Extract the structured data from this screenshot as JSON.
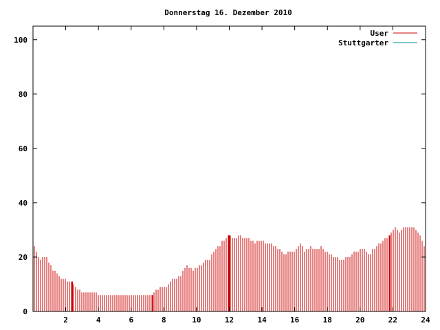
{
  "chart_data": {
    "type": "bar",
    "title": "Donnerstag 16. Dezember 2010",
    "xlabel": "",
    "ylabel": "",
    "xlim": [
      0,
      24
    ],
    "ylim": [
      0,
      105
    ],
    "x_ticks": [
      2,
      4,
      6,
      8,
      10,
      12,
      14,
      16,
      18,
      20,
      22,
      24
    ],
    "y_ticks": [
      0,
      20,
      40,
      60,
      80,
      100
    ],
    "grid": false,
    "legend_position": "top-right",
    "colors": {
      "User": "#cc0000",
      "Stuttgarter": "#008b8b"
    },
    "series": [
      {
        "name": "User",
        "color": "#cc0000",
        "points": [
          [
            0.05,
            25
          ],
          [
            0.2,
            22
          ],
          [
            0.4,
            19
          ],
          [
            0.6,
            20
          ],
          [
            0.8,
            20
          ],
          [
            1.0,
            18
          ],
          [
            1.2,
            15
          ],
          [
            1.4,
            15
          ],
          [
            1.6,
            13
          ],
          [
            1.8,
            12
          ],
          [
            2.0,
            12
          ],
          [
            2.2,
            11
          ],
          [
            2.4,
            11
          ],
          [
            2.6,
            9
          ],
          [
            2.8,
            8
          ],
          [
            3.0,
            7
          ],
          [
            3.2,
            7
          ],
          [
            3.4,
            7
          ],
          [
            3.6,
            7
          ],
          [
            3.8,
            7
          ],
          [
            4.0,
            6
          ],
          [
            4.2,
            6
          ],
          [
            4.4,
            6
          ],
          [
            4.6,
            6
          ],
          [
            4.8,
            6
          ],
          [
            5.0,
            6
          ],
          [
            5.2,
            6
          ],
          [
            5.4,
            6
          ],
          [
            5.6,
            6
          ],
          [
            5.8,
            6
          ],
          [
            6.0,
            6
          ],
          [
            6.2,
            6
          ],
          [
            6.4,
            6
          ],
          [
            6.6,
            6
          ],
          [
            6.8,
            6
          ],
          [
            7.0,
            6
          ],
          [
            7.2,
            6
          ],
          [
            7.4,
            7
          ],
          [
            7.6,
            8
          ],
          [
            7.8,
            9
          ],
          [
            8.0,
            9
          ],
          [
            8.2,
            9
          ],
          [
            8.4,
            11
          ],
          [
            8.6,
            12
          ],
          [
            8.8,
            12
          ],
          [
            9.0,
            13
          ],
          [
            9.2,
            15
          ],
          [
            9.4,
            17
          ],
          [
            9.6,
            16
          ],
          [
            9.8,
            15
          ],
          [
            10.0,
            16
          ],
          [
            10.2,
            17
          ],
          [
            10.4,
            18
          ],
          [
            10.6,
            19
          ],
          [
            10.8,
            19
          ],
          [
            11.0,
            22
          ],
          [
            11.2,
            23
          ],
          [
            11.4,
            24
          ],
          [
            11.6,
            26
          ],
          [
            11.8,
            27
          ],
          [
            12.0,
            28
          ],
          [
            12.2,
            27
          ],
          [
            12.4,
            27
          ],
          [
            12.6,
            28
          ],
          [
            12.8,
            27
          ],
          [
            13.0,
            27
          ],
          [
            13.2,
            27
          ],
          [
            13.4,
            26
          ],
          [
            13.6,
            25
          ],
          [
            13.8,
            26
          ],
          [
            14.0,
            26
          ],
          [
            14.2,
            25
          ],
          [
            14.4,
            25
          ],
          [
            14.6,
            25
          ],
          [
            14.8,
            24
          ],
          [
            15.0,
            23
          ],
          [
            15.2,
            22
          ],
          [
            15.4,
            21
          ],
          [
            15.6,
            22
          ],
          [
            15.8,
            22
          ],
          [
            16.0,
            22
          ],
          [
            16.2,
            24
          ],
          [
            16.4,
            25
          ],
          [
            16.6,
            22
          ],
          [
            16.8,
            23
          ],
          [
            17.0,
            24
          ],
          [
            17.2,
            23
          ],
          [
            17.4,
            23
          ],
          [
            17.6,
            24
          ],
          [
            17.8,
            22
          ],
          [
            18.0,
            22
          ],
          [
            18.2,
            21
          ],
          [
            18.4,
            20
          ],
          [
            18.6,
            20
          ],
          [
            18.8,
            19
          ],
          [
            19.0,
            19
          ],
          [
            19.2,
            20
          ],
          [
            19.4,
            20
          ],
          [
            19.6,
            22
          ],
          [
            19.8,
            22
          ],
          [
            20.0,
            23
          ],
          [
            20.2,
            23
          ],
          [
            20.4,
            22
          ],
          [
            20.6,
            21
          ],
          [
            20.8,
            23
          ],
          [
            21.0,
            24
          ],
          [
            21.2,
            25
          ],
          [
            21.4,
            26
          ],
          [
            21.6,
            27
          ],
          [
            21.8,
            28
          ],
          [
            22.0,
            30
          ],
          [
            22.2,
            31
          ],
          [
            22.4,
            29
          ],
          [
            22.6,
            31
          ],
          [
            22.8,
            31
          ],
          [
            23.0,
            31
          ],
          [
            23.2,
            31
          ],
          [
            23.4,
            30
          ],
          [
            23.6,
            29
          ],
          [
            23.8,
            26
          ],
          [
            24.0,
            22
          ]
        ]
      },
      {
        "name": "Stuttgarter",
        "color": "#008b8b",
        "points": []
      }
    ]
  }
}
